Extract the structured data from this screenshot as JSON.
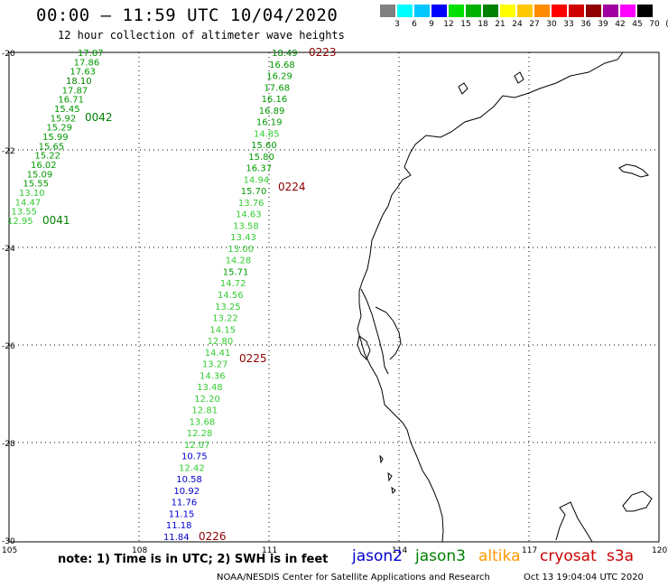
{
  "header": {
    "title": "00:00 – 11:59 UTC 10/04/2020",
    "subtitle": "12 hour collection of altimeter wave heights"
  },
  "color_scale": {
    "colors": [
      "#808080",
      "#00ffff",
      "#00c8ff",
      "#0000ff",
      "#00e000",
      "#00b000",
      "#008000",
      "#ffff00",
      "#ffc800",
      "#ff8c00",
      "#ff0000",
      "#d00000",
      "#900000",
      "#a000a0",
      "#ff00ff",
      "#000000"
    ],
    "labels": [
      "3",
      "6",
      "9",
      "12",
      "15",
      "18",
      "21",
      "24",
      "27",
      "30",
      "33",
      "36",
      "39",
      "42",
      "45",
      "70",
      "(ft)"
    ]
  },
  "axes": {
    "lat_labels": [
      "-20",
      "-22",
      "-24",
      "-26",
      "-28",
      "-30"
    ],
    "lon_labels": [
      "105",
      "108",
      "111",
      "114",
      "117",
      "120"
    ]
  },
  "passes": [
    {
      "satellite": "jason3",
      "values": [
        "17.87",
        "17.86",
        "17.63",
        "18.10",
        "17.87",
        "16.71",
        "15.45",
        "15.92",
        "15.29",
        "15.99",
        "15.65",
        "15.22",
        "16.02",
        "15.09",
        "15.55",
        "13.10",
        "14.47",
        "13.55",
        "12.95"
      ]
    },
    {
      "satellite": "jason3",
      "values": [
        "18.49",
        "16.68",
        "16.29",
        "17.68",
        "16.16",
        "16.89",
        "16.19",
        "14.85",
        "15.60",
        "15.80",
        "16.37",
        "14.94",
        "15.70",
        "13.76",
        "14.63",
        "13.58",
        "13.43",
        "13.00",
        "14.28",
        "15.71",
        "14.72",
        "14.56",
        "13.25",
        "13.22",
        "14.15",
        "12.80",
        "14.41",
        "13.27",
        "14.36",
        "13.48",
        "12.20",
        "12.81",
        "13.68",
        "12.28",
        "12.07",
        "10.75",
        "12.42",
        "10.58",
        "10.92",
        "11.76",
        "11.15",
        "11.18",
        "11.84"
      ]
    }
  ],
  "time_labels": [
    {
      "text": "0042",
      "color": "#008000"
    },
    {
      "text": "0041",
      "color": "#008000"
    },
    {
      "text": "0223",
      "color": "#8b0000"
    },
    {
      "text": "0224",
      "color": "#8b0000"
    },
    {
      "text": "0225",
      "color": "#8b0000"
    },
    {
      "text": "0226",
      "color": "#8b0000"
    }
  ],
  "footer": {
    "note": "note:  1) Time is in UTC;  2) SWH is in feet",
    "satellites": [
      {
        "name": "jason2",
        "color": "#0000cc"
      },
      {
        "name": "jason3",
        "color": "#008000"
      },
      {
        "name": "altika",
        "color": "#ff9900"
      },
      {
        "name": "cryosat",
        "color": "#cc0000"
      },
      {
        "name": "s3a",
        "color": "#cc0000"
      }
    ],
    "credit": "NOAA/NESDIS Center for Satellite Applications and Research",
    "timestamp": "Oct 13 19:04:04 UTC 2020"
  }
}
